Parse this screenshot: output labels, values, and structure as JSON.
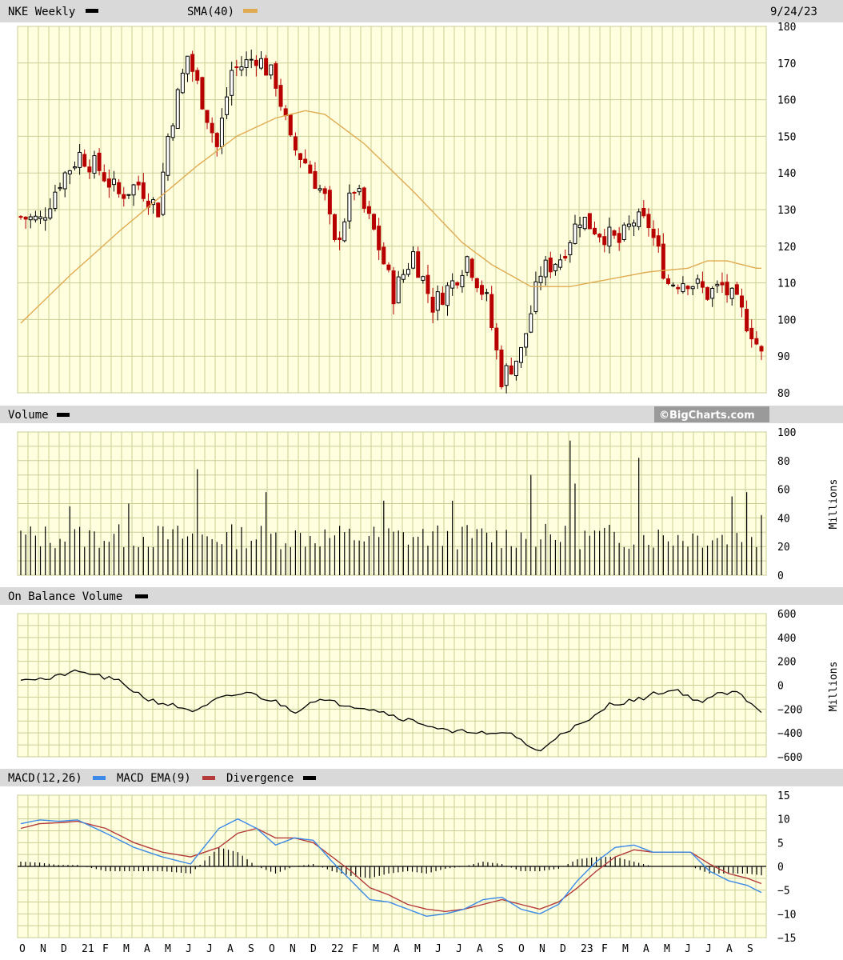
{
  "colors": {
    "plot_bg": "#ffffe0",
    "grid": "#c8cf95",
    "header_bg": "#d9d9d9",
    "candle_up": "#000000",
    "candle_down": "#b80000",
    "sma": "#e0aa50",
    "macd": "#3c8ae8",
    "macd_ema": "#b53a3a",
    "divergence": "#000000",
    "volume": "#000000",
    "obv": "#000000"
  },
  "header": {
    "symbol_label": "NKE Weekly",
    "sma_label": "SMA(40)",
    "date": "9/24/23"
  },
  "volume_panel": {
    "label": "Volume",
    "brand": "©BigCharts.com",
    "units": "Millions"
  },
  "obv_panel": {
    "label": "On Balance Volume",
    "units": "Millions"
  },
  "macd_panel": {
    "label1": "MACD(12,26)",
    "label2": "MACD EMA(9)",
    "label3": "Divergence"
  },
  "chart_data": {
    "type": "candlestick",
    "x_ticks": [
      "O",
      "N",
      "D",
      "21",
      "F",
      "M",
      "A",
      "M",
      "J",
      "J",
      "A",
      "S",
      "O",
      "N",
      "D",
      "22",
      "F",
      "M",
      "A",
      "M",
      "J",
      "J",
      "A",
      "S",
      "O",
      "N",
      "D",
      "23",
      "F",
      "M",
      "A",
      "M",
      "J",
      "J",
      "A",
      "S"
    ],
    "price": {
      "ylim": [
        80,
        180
      ],
      "yticks": [
        80,
        90,
        100,
        110,
        120,
        130,
        140,
        150,
        160,
        170,
        180
      ],
      "close_anchors": [
        [
          0,
          128
        ],
        [
          4,
          127
        ],
        [
          8,
          138
        ],
        [
          12,
          145
        ],
        [
          16,
          141
        ],
        [
          20,
          134
        ],
        [
          24,
          137
        ],
        [
          28,
          130
        ],
        [
          30,
          150
        ],
        [
          34,
          172
        ],
        [
          37,
          160
        ],
        [
          40,
          147
        ],
        [
          43,
          168
        ],
        [
          46,
          170
        ],
        [
          48,
          172
        ],
        [
          52,
          165
        ],
        [
          55,
          148
        ],
        [
          58,
          143
        ],
        [
          62,
          133
        ],
        [
          64,
          120
        ],
        [
          68,
          136
        ],
        [
          72,
          124
        ],
        [
          76,
          107
        ],
        [
          80,
          118
        ],
        [
          84,
          104
        ],
        [
          88,
          110
        ],
        [
          91,
          117
        ],
        [
          95,
          105
        ],
        [
          98,
          84
        ],
        [
          102,
          91
        ],
        [
          106,
          113
        ],
        [
          110,
          117
        ],
        [
          114,
          128
        ],
        [
          118,
          124
        ],
        [
          122,
          121
        ],
        [
          125,
          127
        ],
        [
          128,
          126
        ],
        [
          132,
          110
        ],
        [
          136,
          111
        ],
        [
          140,
          107
        ],
        [
          143,
          109
        ],
        [
          146,
          104
        ],
        [
          149,
          97
        ],
        [
          151,
          90
        ]
      ],
      "sma40_anchors": [
        [
          0,
          99
        ],
        [
          10,
          112
        ],
        [
          20,
          124
        ],
        [
          28,
          133
        ],
        [
          36,
          142
        ],
        [
          44,
          150
        ],
        [
          52,
          155
        ],
        [
          58,
          157
        ],
        [
          62,
          156
        ],
        [
          70,
          148
        ],
        [
          80,
          135
        ],
        [
          90,
          121
        ],
        [
          96,
          115
        ],
        [
          104,
          109
        ],
        [
          112,
          109
        ],
        [
          120,
          111
        ],
        [
          128,
          113
        ],
        [
          136,
          114
        ],
        [
          140,
          116
        ],
        [
          144,
          116
        ],
        [
          150,
          114
        ]
      ]
    },
    "volume": {
      "ylim": [
        0,
        100
      ],
      "yticks": [
        0,
        20,
        40,
        60,
        80,
        100
      ],
      "spikes": [
        [
          10,
          48
        ],
        [
          22,
          50
        ],
        [
          36,
          74
        ],
        [
          50,
          58
        ],
        [
          74,
          52
        ],
        [
          88,
          52
        ],
        [
          104,
          70
        ],
        [
          112,
          94
        ],
        [
          113,
          64
        ],
        [
          126,
          82
        ],
        [
          145,
          55
        ],
        [
          148,
          58
        ],
        [
          151,
          42
        ]
      ]
    },
    "obv": {
      "ylim": [
        -600,
        600
      ],
      "yticks": [
        -600,
        -400,
        -200,
        0,
        200,
        400,
        600
      ],
      "anchors": [
        [
          0,
          60
        ],
        [
          6,
          50
        ],
        [
          10,
          110
        ],
        [
          14,
          100
        ],
        [
          20,
          30
        ],
        [
          26,
          -120
        ],
        [
          30,
          -160
        ],
        [
          36,
          -220
        ],
        [
          40,
          -120
        ],
        [
          46,
          -60
        ],
        [
          52,
          -140
        ],
        [
          56,
          -220
        ],
        [
          60,
          -120
        ],
        [
          66,
          -160
        ],
        [
          72,
          -200
        ],
        [
          78,
          -280
        ],
        [
          82,
          -320
        ],
        [
          88,
          -400
        ],
        [
          92,
          -380
        ],
        [
          96,
          -420
        ],
        [
          100,
          -400
        ],
        [
          104,
          -520
        ],
        [
          106,
          -560
        ],
        [
          110,
          -400
        ],
        [
          116,
          -300
        ],
        [
          120,
          -160
        ],
        [
          126,
          -120
        ],
        [
          130,
          -60
        ],
        [
          134,
          -40
        ],
        [
          138,
          -140
        ],
        [
          142,
          -80
        ],
        [
          146,
          -60
        ],
        [
          150,
          -180
        ],
        [
          152,
          -260
        ]
      ]
    },
    "macd": {
      "ylim": [
        -15,
        15
      ],
      "yticks": [
        -15,
        -10,
        -5,
        0,
        5,
        10,
        15
      ],
      "macd_anchors": [
        [
          0,
          9
        ],
        [
          4,
          9.8
        ],
        [
          8,
          9.5
        ],
        [
          12,
          9.8
        ],
        [
          18,
          7
        ],
        [
          24,
          4
        ],
        [
          30,
          2
        ],
        [
          36,
          0.5
        ],
        [
          42,
          8
        ],
        [
          46,
          10
        ],
        [
          50,
          8
        ],
        [
          54,
          4.5
        ],
        [
          58,
          6
        ],
        [
          62,
          5.5
        ],
        [
          66,
          1
        ],
        [
          70,
          -3
        ],
        [
          74,
          -7
        ],
        [
          78,
          -7.5
        ],
        [
          82,
          -9
        ],
        [
          86,
          -10.5
        ],
        [
          90,
          -10
        ],
        [
          94,
          -9
        ],
        [
          98,
          -7
        ],
        [
          102,
          -6.5
        ],
        [
          106,
          -9
        ],
        [
          110,
          -10
        ],
        [
          114,
          -8
        ],
        [
          118,
          -3
        ],
        [
          122,
          1
        ],
        [
          126,
          4
        ],
        [
          130,
          4.5
        ],
        [
          134,
          3
        ],
        [
          138,
          3
        ],
        [
          142,
          3
        ],
        [
          146,
          -1
        ],
        [
          150,
          -3
        ],
        [
          154,
          -4
        ],
        [
          158,
          -6
        ]
      ],
      "ema_anchors": [
        [
          0,
          8
        ],
        [
          4,
          9
        ],
        [
          8,
          9.2
        ],
        [
          12,
          9.5
        ],
        [
          18,
          8
        ],
        [
          24,
          5
        ],
        [
          30,
          3
        ],
        [
          36,
          2
        ],
        [
          42,
          4
        ],
        [
          46,
          7
        ],
        [
          50,
          8
        ],
        [
          54,
          6
        ],
        [
          58,
          6
        ],
        [
          62,
          5
        ],
        [
          66,
          2
        ],
        [
          70,
          -1
        ],
        [
          74,
          -4.5
        ],
        [
          78,
          -6
        ],
        [
          82,
          -8
        ],
        [
          86,
          -9
        ],
        [
          90,
          -9.5
        ],
        [
          94,
          -9
        ],
        [
          98,
          -8
        ],
        [
          102,
          -7
        ],
        [
          106,
          -8
        ],
        [
          110,
          -9
        ],
        [
          114,
          -7.5
        ],
        [
          118,
          -4.5
        ],
        [
          122,
          -1
        ],
        [
          126,
          2
        ],
        [
          130,
          3.5
        ],
        [
          134,
          3
        ],
        [
          138,
          3
        ],
        [
          142,
          3
        ],
        [
          146,
          0.5
        ],
        [
          150,
          -1.5
        ],
        [
          154,
          -2.5
        ],
        [
          158,
          -4
        ]
      ]
    }
  }
}
